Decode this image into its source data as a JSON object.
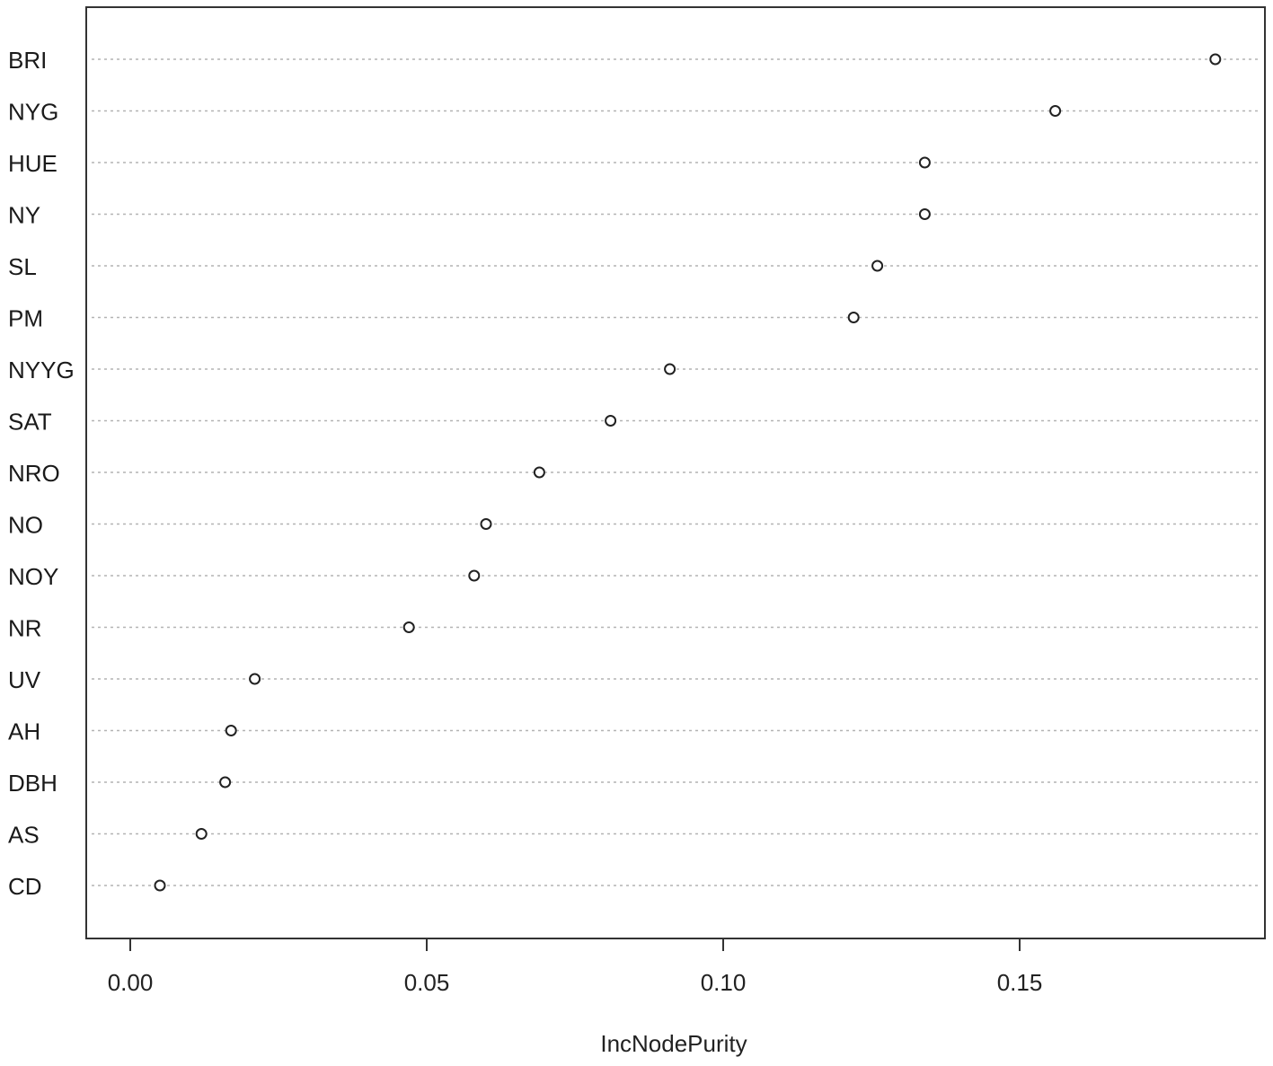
{
  "chart_data": {
    "type": "scatter",
    "xlabel": "IncNodePurity",
    "ylabel": "",
    "title": "",
    "xlim": [
      0,
      0.19
    ],
    "xticks": [
      "0.00",
      "0.05",
      "0.10",
      "0.15"
    ],
    "grid": "dotted horizontal lines per category",
    "categories": [
      "BRI",
      "NYG",
      "HUE",
      "NY",
      "SL",
      "PM",
      "NYYG",
      "SAT",
      "NRO",
      "NO",
      "NOY",
      "NR",
      "UV",
      "AH",
      "DBH",
      "AS",
      "CD"
    ],
    "values": [
      0.183,
      0.156,
      0.134,
      0.134,
      0.126,
      0.122,
      0.091,
      0.081,
      0.069,
      0.06,
      0.058,
      0.047,
      0.021,
      0.017,
      0.016,
      0.012,
      0.005
    ]
  }
}
